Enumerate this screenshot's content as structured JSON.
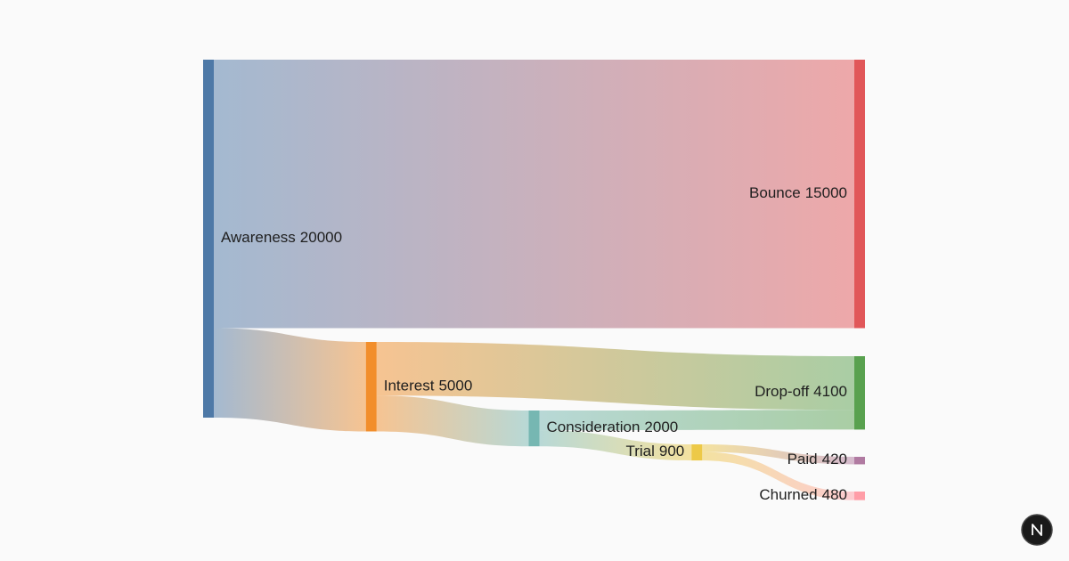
{
  "chart_data": {
    "type": "sankey",
    "nodes": [
      {
        "name": "Awareness",
        "value": 20000,
        "color": "#4e79a7"
      },
      {
        "name": "Interest",
        "value": 5000,
        "color": "#f28e2b"
      },
      {
        "name": "Consideration",
        "value": 2000,
        "color": "#76b7b2"
      },
      {
        "name": "Trial",
        "value": 900,
        "color": "#edc948"
      },
      {
        "name": "Paid",
        "value": 420,
        "color": "#b07aa1"
      },
      {
        "name": "Churned",
        "value": 480,
        "color": "#ff9da7"
      },
      {
        "name": "Bounce",
        "value": 15000,
        "color": "#e15759"
      },
      {
        "name": "Drop-off",
        "value": 4100,
        "color": "#59a14f"
      }
    ],
    "links": [
      {
        "source": 0,
        "target": 6,
        "value": 15000
      },
      {
        "source": 0,
        "target": 1,
        "value": 5000
      },
      {
        "source": 1,
        "target": 7,
        "value": 3000
      },
      {
        "source": 1,
        "target": 2,
        "value": 2000
      },
      {
        "source": 2,
        "target": 7,
        "value": 1100
      },
      {
        "source": 2,
        "target": 3,
        "value": 900
      },
      {
        "source": 3,
        "target": 4,
        "value": 420
      },
      {
        "source": 3,
        "target": 5,
        "value": 480
      }
    ]
  }
}
